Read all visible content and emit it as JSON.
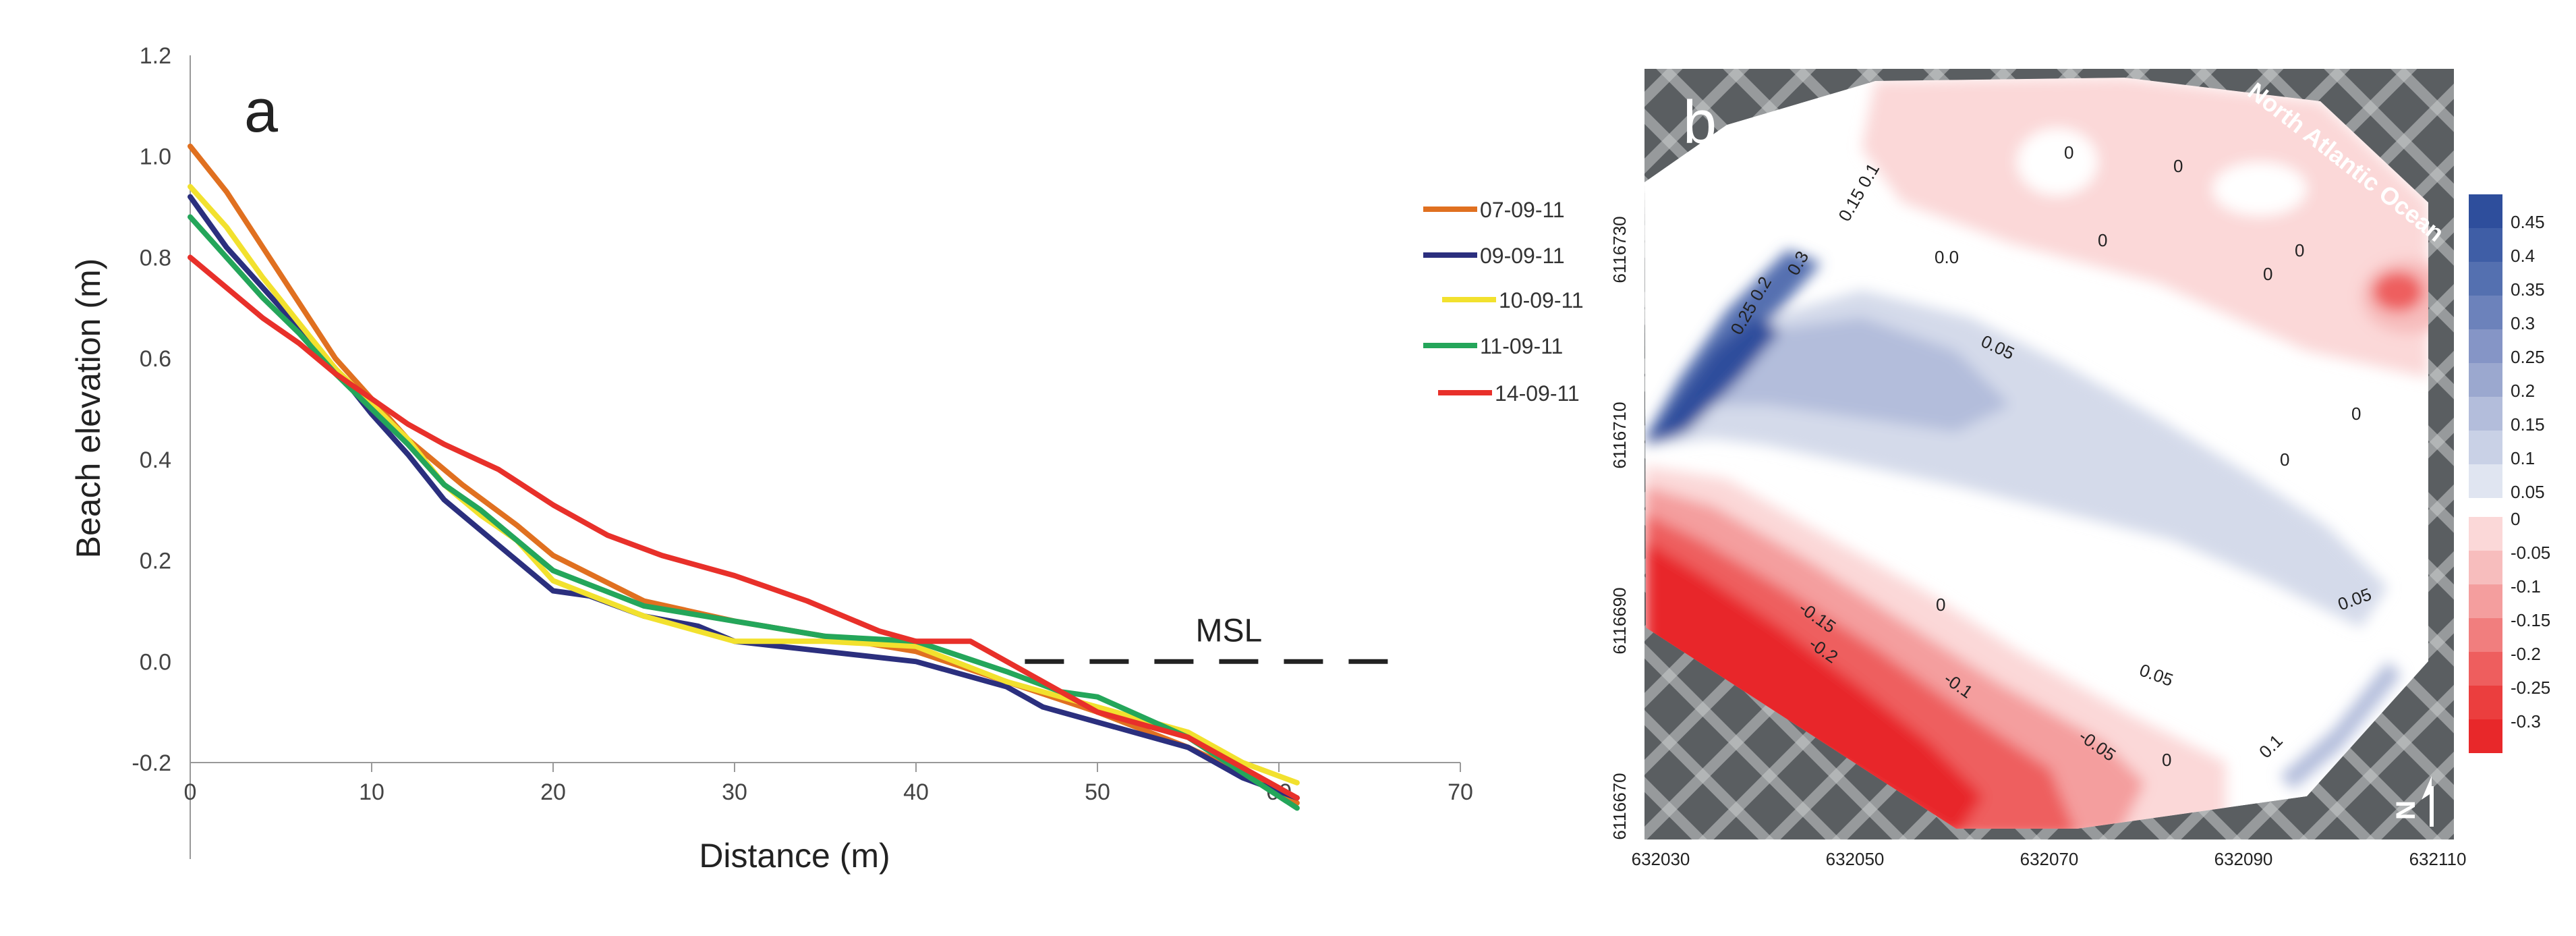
{
  "chart_data": [
    {
      "panel_label": "a",
      "type": "line",
      "xlabel": "Distance (m)",
      "ylabel": "Beach elevation (m)",
      "xlim": [
        0,
        70
      ],
      "ylim": [
        -0.2,
        1.2
      ],
      "x_ticks": [
        "0",
        "10",
        "20",
        "30",
        "40",
        "50",
        "60",
        "70"
      ],
      "y_ticks": [
        "1.2",
        "1.0",
        "0.8",
        "0.6",
        "0.4",
        "0.2",
        "0.0",
        "-0.2"
      ],
      "legend_position": "right",
      "series": [
        {
          "name": "07-09-11",
          "color": "#E07020",
          "x": [
            0,
            2,
            4,
            6,
            8,
            10,
            12,
            15,
            18,
            20,
            25,
            30,
            35,
            40,
            45,
            50,
            55,
            58,
            61
          ],
          "y": [
            1.02,
            0.93,
            0.82,
            0.71,
            0.6,
            0.52,
            0.44,
            0.35,
            0.27,
            0.21,
            0.12,
            0.08,
            0.05,
            0.02,
            -0.04,
            -0.1,
            -0.17,
            -0.22,
            -0.28
          ]
        },
        {
          "name": "09-09-11",
          "color": "#2B2F7E",
          "x": [
            0,
            2,
            4,
            6,
            8,
            10,
            12,
            14,
            16,
            18,
            20,
            22,
            25,
            28,
            30,
            35,
            40,
            45,
            47,
            50,
            55,
            58,
            61
          ],
          "y": [
            0.92,
            0.82,
            0.74,
            0.66,
            0.58,
            0.49,
            0.41,
            0.32,
            0.26,
            0.2,
            0.14,
            0.13,
            0.09,
            0.07,
            0.04,
            0.02,
            0.0,
            -0.05,
            -0.09,
            -0.12,
            -0.17,
            -0.23,
            -0.27
          ]
        },
        {
          "name": "10-09-11",
          "color": "#F2E12E",
          "x": [
            0,
            2,
            4,
            6,
            8,
            10,
            12,
            14,
            16,
            18,
            20,
            25,
            30,
            35,
            40,
            45,
            50,
            55,
            58,
            61
          ],
          "y": [
            0.94,
            0.86,
            0.76,
            0.67,
            0.58,
            0.51,
            0.44,
            0.35,
            0.29,
            0.24,
            0.16,
            0.09,
            0.04,
            0.04,
            0.03,
            -0.04,
            -0.09,
            -0.14,
            -0.2,
            -0.24
          ]
        },
        {
          "name": "11-09-11",
          "color": "#24A65A",
          "x": [
            0,
            2,
            4,
            6,
            8,
            10,
            12,
            14,
            16,
            18,
            20,
            25,
            30,
            35,
            40,
            45,
            48,
            50,
            55,
            58,
            61
          ],
          "y": [
            0.88,
            0.8,
            0.72,
            0.65,
            0.57,
            0.5,
            0.43,
            0.35,
            0.3,
            0.24,
            0.18,
            0.11,
            0.08,
            0.05,
            0.04,
            -0.02,
            -0.06,
            -0.07,
            -0.15,
            -0.22,
            -0.29
          ]
        },
        {
          "name": "14-09-11",
          "color": "#E8302A",
          "x": [
            0,
            2,
            4,
            6,
            8,
            10,
            12,
            14,
            17,
            20,
            23,
            26,
            30,
            34,
            38,
            40,
            43,
            45,
            48,
            50,
            55,
            58,
            61
          ],
          "y": [
            0.8,
            0.74,
            0.68,
            0.63,
            0.57,
            0.52,
            0.47,
            0.43,
            0.38,
            0.31,
            0.25,
            0.21,
            0.17,
            0.12,
            0.06,
            0.04,
            0.04,
            0.0,
            -0.06,
            -0.1,
            -0.15,
            -0.21,
            -0.27
          ]
        }
      ],
      "annotations": [
        {
          "text": "MSL",
          "type": "dashed-line",
          "x": [
            46,
            67
          ],
          "y": 0.0
        }
      ]
    },
    {
      "panel_label": "b",
      "type": "heatmap",
      "x_ticks": [
        "632030",
        "632050",
        "632070",
        "632090",
        "632110"
      ],
      "y_ticks": [
        "6116730",
        "6116710",
        "6116690",
        "6116670"
      ],
      "xlim": [
        632030,
        632110
      ],
      "ylim": [
        6116670,
        6116730
      ],
      "annotation_text": "North Atlantic Ocean",
      "north_arrow_label": "N",
      "colorbar_labels": [
        "0.45",
        "0.4",
        "0.35",
        "0.3",
        "0.25",
        "0.2",
        "0.15",
        "0.1",
        "0.05",
        "0",
        "-0.05",
        "-0.1",
        "-0.15",
        "-0.2",
        "-0.25",
        "-0.3"
      ],
      "colorbar_colors": [
        "#2E4E9C",
        "#3F5EA6",
        "#5470B0",
        "#6C82BB",
        "#8595C6",
        "#9BA8CF",
        "#B3BDDB",
        "#C9D1E6",
        "#E0E5F1",
        "#FBD8D8",
        "#F7BDBD",
        "#F49E9E",
        "#F17E7E",
        "#EE5E5E",
        "#EB3E3E",
        "#E8282A"
      ],
      "contour_labels": [
        {
          "text": "0"
        },
        {
          "text": "0"
        },
        {
          "text": "0"
        },
        {
          "text": "0"
        },
        {
          "text": "0"
        },
        {
          "text": "0"
        },
        {
          "text": "0"
        },
        {
          "text": "0"
        },
        {
          "text": "0.0"
        },
        {
          "text": "0.05"
        },
        {
          "text": "0.05"
        },
        {
          "text": "0.05"
        },
        {
          "text": "0.1"
        },
        {
          "text": "-0.1"
        },
        {
          "text": "-0.15"
        },
        {
          "text": "-0.2"
        },
        {
          "text": "-0.05"
        },
        {
          "text": "0"
        },
        {
          "text": "0.15 0.1"
        },
        {
          "text": "0.25 0.2"
        },
        {
          "text": "0.3"
        }
      ]
    }
  ]
}
